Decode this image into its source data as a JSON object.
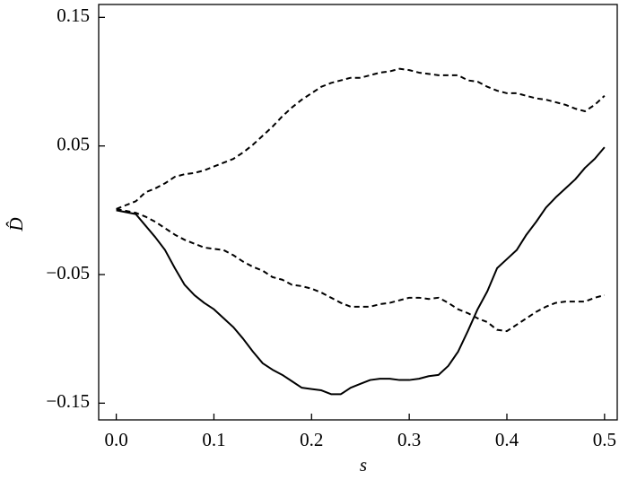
{
  "chart_data": {
    "type": "line",
    "xlabel": "s",
    "ylabel": "D̂",
    "x": [
      0,
      0.02,
      0.03,
      0.04,
      0.05,
      0.06,
      0.07,
      0.08,
      0.09,
      0.1,
      0.11,
      0.12,
      0.13,
      0.14,
      0.15,
      0.16,
      0.17,
      0.18,
      0.19,
      0.2,
      0.21,
      0.22,
      0.23,
      0.24,
      0.25,
      0.26,
      0.27,
      0.28,
      0.29,
      0.3,
      0.31,
      0.32,
      0.33,
      0.34,
      0.35,
      0.36,
      0.37,
      0.38,
      0.39,
      0.4,
      0.41,
      0.42,
      0.43,
      0.44,
      0.45,
      0.46,
      0.47,
      0.48,
      0.49,
      0.5
    ],
    "series": [
      {
        "color": "#000000",
        "style": "solid",
        "values": [
          0,
          -0.003,
          -0.012,
          -0.021,
          -0.031,
          -0.045,
          -0.058,
          -0.066,
          -0.072,
          -0.077,
          -0.084,
          -0.091,
          -0.1,
          -0.11,
          -0.119,
          -0.124,
          -0.128,
          -0.133,
          -0.138,
          -0.139,
          -0.14,
          -0.143,
          -0.143,
          -0.138,
          -0.135,
          -0.132,
          -0.131,
          -0.131,
          -0.132,
          -0.132,
          -0.131,
          -0.129,
          -0.128,
          -0.121,
          -0.11,
          -0.094,
          -0.077,
          -0.063,
          -0.045,
          -0.038,
          -0.031,
          -0.019,
          -0.009,
          0.002,
          0.01,
          0.017,
          0.024,
          0.033,
          0.04,
          0.049
        ]
      },
      {
        "color": "#000000",
        "style": "dashed",
        "values": [
          0.001,
          0.007,
          0.014,
          0.017,
          0.021,
          0.026,
          0.028,
          0.029,
          0.031,
          0.034,
          0.037,
          0.04,
          0.045,
          0.051,
          0.058,
          0.065,
          0.073,
          0.08,
          0.086,
          0.091,
          0.096,
          0.099,
          0.101,
          0.103,
          0.103,
          0.105,
          0.107,
          0.108,
          0.11,
          0.109,
          0.107,
          0.106,
          0.105,
          0.105,
          0.105,
          0.101,
          0.1,
          0.096,
          0.093,
          0.091,
          0.091,
          0.089,
          0.087,
          0.086,
          0.084,
          0.082,
          0.079,
          0.077,
          0.082,
          0.089
        ]
      },
      {
        "color": "#000000",
        "style": "dashed",
        "values": [
          0.001,
          -0.002,
          -0.005,
          -0.009,
          -0.014,
          -0.019,
          -0.023,
          -0.026,
          -0.029,
          -0.03,
          -0.031,
          -0.035,
          -0.04,
          -0.044,
          -0.047,
          -0.052,
          -0.054,
          -0.058,
          -0.059,
          -0.061,
          -0.064,
          -0.068,
          -0.072,
          -0.075,
          -0.075,
          -0.075,
          -0.073,
          -0.072,
          -0.07,
          -0.068,
          -0.068,
          -0.069,
          -0.068,
          -0.072,
          -0.077,
          -0.08,
          -0.084,
          -0.087,
          -0.093,
          -0.094,
          -0.089,
          -0.084,
          -0.079,
          -0.075,
          -0.072,
          -0.071,
          -0.071,
          -0.071,
          -0.068,
          -0.066
        ]
      }
    ],
    "xlim": [
      -0.018,
      0.513
    ],
    "ylim": [
      -0.163,
      0.16
    ],
    "xticks": [
      {
        "value": 0,
        "label": "0.0"
      },
      0.1,
      0.2,
      0.3,
      0.4,
      0.5
    ],
    "yticks": [
      {
        "value": -0.15,
        "label": "−0.15"
      },
      {
        "value": -0.05,
        "label": "−0.05"
      },
      0.05,
      0.15
    ],
    "grid": false
  }
}
